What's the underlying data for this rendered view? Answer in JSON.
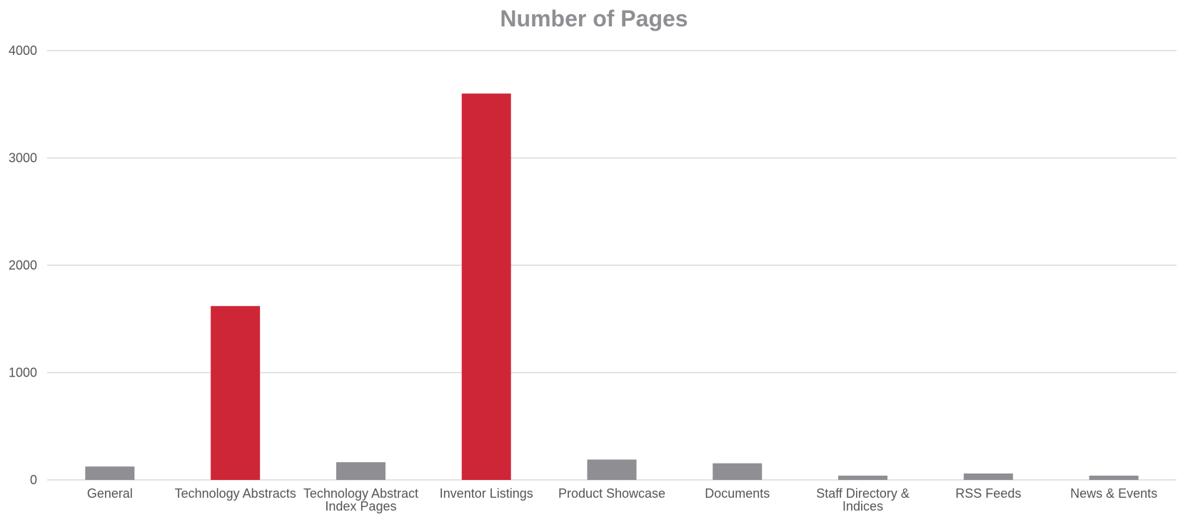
{
  "chart_data": {
    "type": "bar",
    "title": "Number of Pages",
    "xlabel": "",
    "ylabel": "",
    "ylim": [
      0,
      4000
    ],
    "yticks": [
      0,
      1000,
      2000,
      3000,
      4000
    ],
    "grid": true,
    "categories": [
      [
        "General"
      ],
      [
        "Technology Abstracts"
      ],
      [
        "Technology Abstract",
        "Index Pages"
      ],
      [
        "Inventor Listings"
      ],
      [
        "Product Showcase"
      ],
      [
        "Documents"
      ],
      [
        "Staff Directory &",
        "Indices"
      ],
      [
        "RSS Feeds"
      ],
      [
        "News & Events"
      ]
    ],
    "values": [
      125,
      1620,
      165,
      3600,
      190,
      155,
      40,
      60,
      40
    ],
    "highlight": [
      false,
      true,
      false,
      true,
      false,
      false,
      false,
      false,
      false
    ],
    "colors": {
      "default": "#8e8e93",
      "highlight": "#cf2637"
    }
  }
}
